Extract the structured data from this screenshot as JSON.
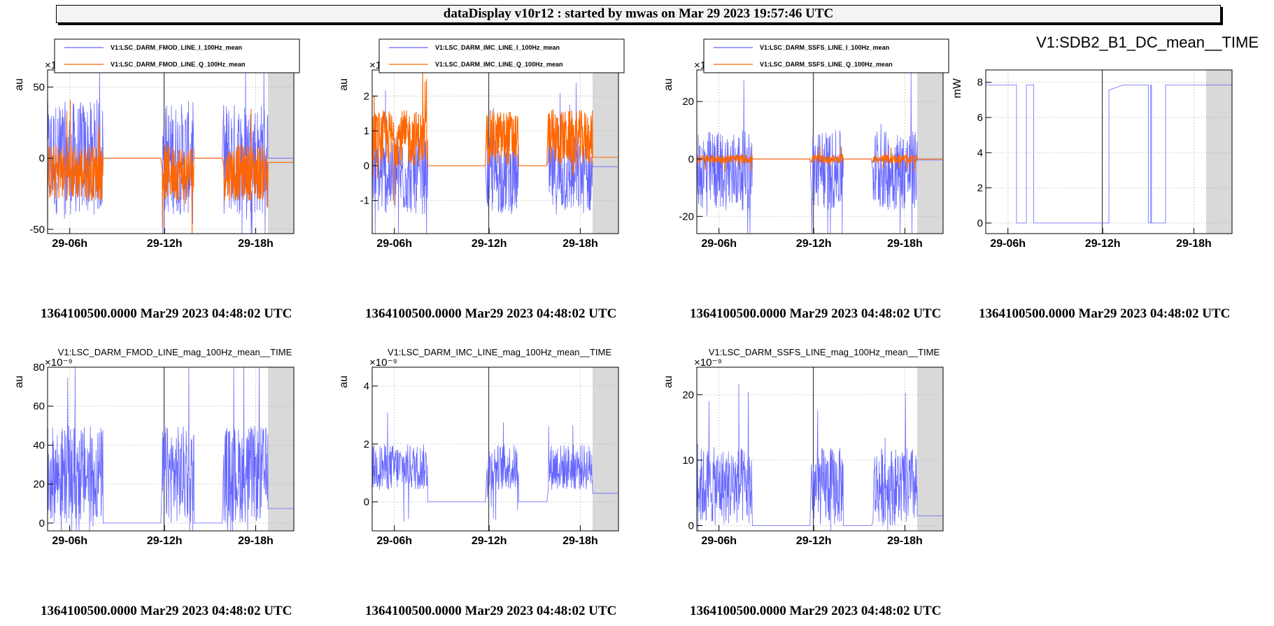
{
  "header": {
    "title": "dataDisplay v10r12 : started by mwas on Mar 29 2023 19:57:46 UTC"
  },
  "colors": {
    "series_i": "#6666ff",
    "series_q": "#ff6600",
    "no_data": "#d9d9d9",
    "frame": "#000000"
  },
  "chart_data": [
    {
      "type": "line",
      "title": "",
      "ylabel": "au",
      "exponent": "×1",
      "x_tick_labels": [
        "29-06h",
        "29-12h",
        "29-18h"
      ],
      "y_ticks": [
        -50,
        0,
        50
      ],
      "ylim": [
        -53,
        62
      ],
      "grid": true,
      "legend": "top",
      "series": [
        {
          "name": "V1:LSC_DARM_FMOD_LINE_I_100Hz_mean",
          "color": "#6666ff",
          "amplitude": 40,
          "center": 0
        },
        {
          "name": "V1:LSC_DARM_FMOD_LINE_Q_100Hz_mean",
          "color": "#ff6600",
          "amplitude": 20,
          "center": -10
        }
      ]
    },
    {
      "type": "line",
      "title": "",
      "ylabel": "au",
      "exponent": "×1",
      "x_tick_labels": [
        "29-06h",
        "29-12h",
        "29-18h"
      ],
      "y_ticks": [
        -1,
        0,
        1,
        2
      ],
      "ylim": [
        -1.95,
        2.75
      ],
      "grid": true,
      "legend": "top",
      "series": [
        {
          "name": "V1:LSC_DARM_IMC_LINE_I_100Hz_mean",
          "color": "#6666ff",
          "amplitude": 1.1,
          "center": -0.3
        },
        {
          "name": "V1:LSC_DARM_IMC_LINE_Q_100Hz_mean",
          "color": "#ff6600",
          "amplitude": 0.8,
          "center": 0.8
        }
      ]
    },
    {
      "type": "line",
      "title": "",
      "ylabel": "au",
      "exponent": "×1",
      "x_tick_labels": [
        "29-06h",
        "29-12h",
        "29-18h"
      ],
      "y_ticks": [
        -20,
        0,
        20
      ],
      "ylim": [
        -26,
        31
      ],
      "grid": true,
      "legend": "top",
      "series": [
        {
          "name": "V1:LSC_DARM_SSFS_LINE_I_100Hz_mean",
          "color": "#6666ff",
          "amplitude": 14,
          "center": -4
        },
        {
          "name": "V1:LSC_DARM_SSFS_LINE_Q_100Hz_mean",
          "color": "#ff6600",
          "amplitude": 1.5,
          "center": 0
        }
      ]
    },
    {
      "type": "line",
      "title": "V1:SDB2_B1_DC_mean__TIME",
      "ylabel": "mW",
      "exponent": "",
      "x_tick_labels": [
        "29-06h",
        "29-12h",
        "29-18h"
      ],
      "y_ticks": [
        0,
        2,
        4,
        6,
        8
      ],
      "ylim": [
        -0.6,
        8.7
      ],
      "grid": true,
      "legend": "none",
      "series": [
        {
          "name": "",
          "color": "#6666ff",
          "levels": [
            7.85,
            0
          ]
        }
      ]
    },
    {
      "type": "line",
      "title": "V1:LSC_DARM_FMOD_LINE_mag_100Hz_mean__TIME",
      "ylabel": "au",
      "exponent": "×10⁻⁹",
      "x_tick_labels": [
        "29-06h",
        "29-12h",
        "29-18h"
      ],
      "y_ticks": [
        0,
        20,
        40,
        60,
        80
      ],
      "ylim": [
        -4,
        80
      ],
      "grid": true,
      "legend": "none",
      "series": [
        {
          "name": "",
          "color": "#6666ff",
          "amplitude": 25,
          "center": 25,
          "flat": 0,
          "tail": 7.5
        }
      ]
    },
    {
      "type": "line",
      "title": "V1:LSC_DARM_IMC_LINE_mag_100Hz_mean__TIME",
      "ylabel": "au",
      "exponent": "×10⁻⁹",
      "x_tick_labels": [
        "29-06h",
        "29-12h",
        "29-18h"
      ],
      "y_ticks": [
        0,
        2,
        4
      ],
      "ylim": [
        -1,
        4.65
      ],
      "grid": true,
      "legend": "none",
      "series": [
        {
          "name": "",
          "color": "#6666ff",
          "amplitude": 0.8,
          "center": 1.2,
          "flat": 0,
          "tail": 0.3
        }
      ]
    },
    {
      "type": "line",
      "title": "V1:LSC_DARM_SSFS_LINE_mag_100Hz_mean__TIME",
      "ylabel": "au",
      "exponent": "×10⁻⁹",
      "x_tick_labels": [
        "29-06h",
        "29-12h",
        "29-18h"
      ],
      "y_ticks": [
        0,
        10,
        20
      ],
      "ylim": [
        -0.8,
        24.2
      ],
      "grid": true,
      "legend": "none",
      "series": [
        {
          "name": "",
          "color": "#6666ff",
          "amplitude": 6,
          "center": 6,
          "flat": 0,
          "tail": 1.5
        }
      ]
    }
  ],
  "gps_labels": [
    "1364100500.0000 Mar29 2023 04:48:02 UTC",
    "1364100500.0000 Mar29 2023 04:48:02 UTC",
    "1364100500.0000 Mar29 2023 04:48:02 UTC",
    "1364100500.0000 Mar29 2023 04:48:02 UTC",
    "1364100500.0000 Mar29 2023 04:48:02 UTC",
    "1364100500.0000 Mar29 2023 04:48:02 UTC",
    "1364100500.0000 Mar29 2023 04:48:02 UTC"
  ]
}
